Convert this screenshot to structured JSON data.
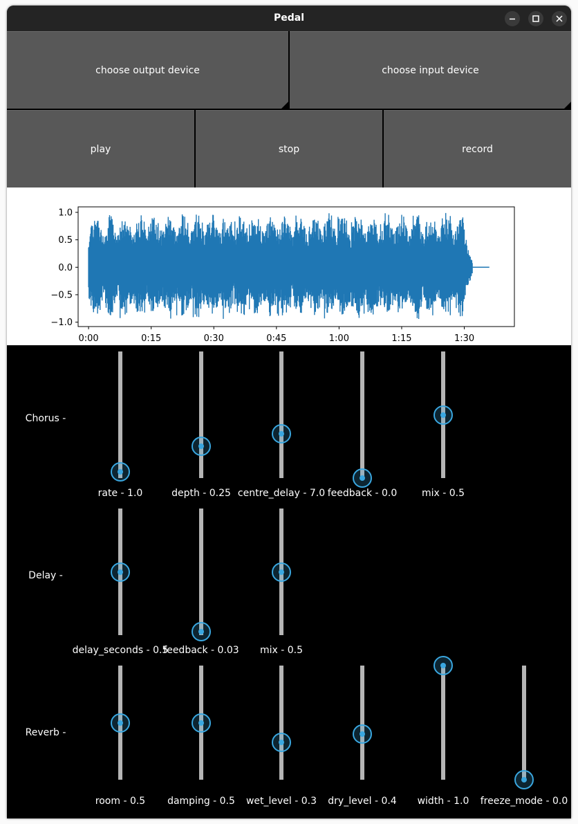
{
  "window": {
    "title": "Pedal",
    "minimize_icon": "minimize-icon",
    "maximize_icon": "maximize-icon",
    "close_icon": "close-icon"
  },
  "buttons": {
    "output_device": "choose output device",
    "input_device": "choose input device",
    "play": "play",
    "stop": "stop",
    "record": "record"
  },
  "chart_data": {
    "type": "line",
    "title": "",
    "xlabel": "",
    "ylabel": "",
    "x_ticks": [
      "0:00",
      "0:15",
      "0:30",
      "0:45",
      "1:00",
      "1:15",
      "1:30"
    ],
    "x_tick_seconds": [
      0,
      15,
      30,
      45,
      60,
      75,
      90
    ],
    "y_ticks": [
      "1.0",
      "0.5",
      "0.0",
      "−0.5",
      "−1.0"
    ],
    "y_tick_values": [
      1.0,
      0.5,
      0.0,
      -0.5,
      -1.0
    ],
    "xlim": [
      -2.5,
      102
    ],
    "ylim": [
      -1.08,
      1.1
    ],
    "duration_seconds": 96,
    "audio_end_seconds": 92,
    "color": "#1f77b4",
    "grid": false
  },
  "effects": [
    {
      "name": "Chorus -",
      "sliders": [
        {
          "label": "rate - 1.0",
          "level": 0.05
        },
        {
          "label": "depth - 0.25",
          "level": 0.25
        },
        {
          "label": "centre_delay - 7.0",
          "level": 0.35
        },
        {
          "label": "feedback - 0.0",
          "level": 0.0
        },
        {
          "label": "mix - 0.5",
          "level": 0.5
        }
      ]
    },
    {
      "name": "Delay -",
      "sliders": [
        {
          "label": "delay_seconds - 0.5",
          "level": 0.5
        },
        {
          "label": "feedback - 0.03",
          "level": 0.03
        },
        {
          "label": "mix - 0.5",
          "level": 0.5
        }
      ]
    },
    {
      "name": "Reverb -",
      "sliders": [
        {
          "label": "room - 0.5",
          "level": 0.5
        },
        {
          "label": "damping - 0.5",
          "level": 0.5
        },
        {
          "label": "wet_level - 0.3",
          "level": 0.33
        },
        {
          "label": "dry_level - 0.4",
          "level": 0.4
        },
        {
          "label": "width - 1.0",
          "level": 1.0
        },
        {
          "label": "freeze_mode - 0.0",
          "level": 0.0
        }
      ]
    }
  ],
  "colors": {
    "accent": "#3aa7e0",
    "button": "#585858",
    "track": "#b5b5b5",
    "background": "#000000"
  }
}
